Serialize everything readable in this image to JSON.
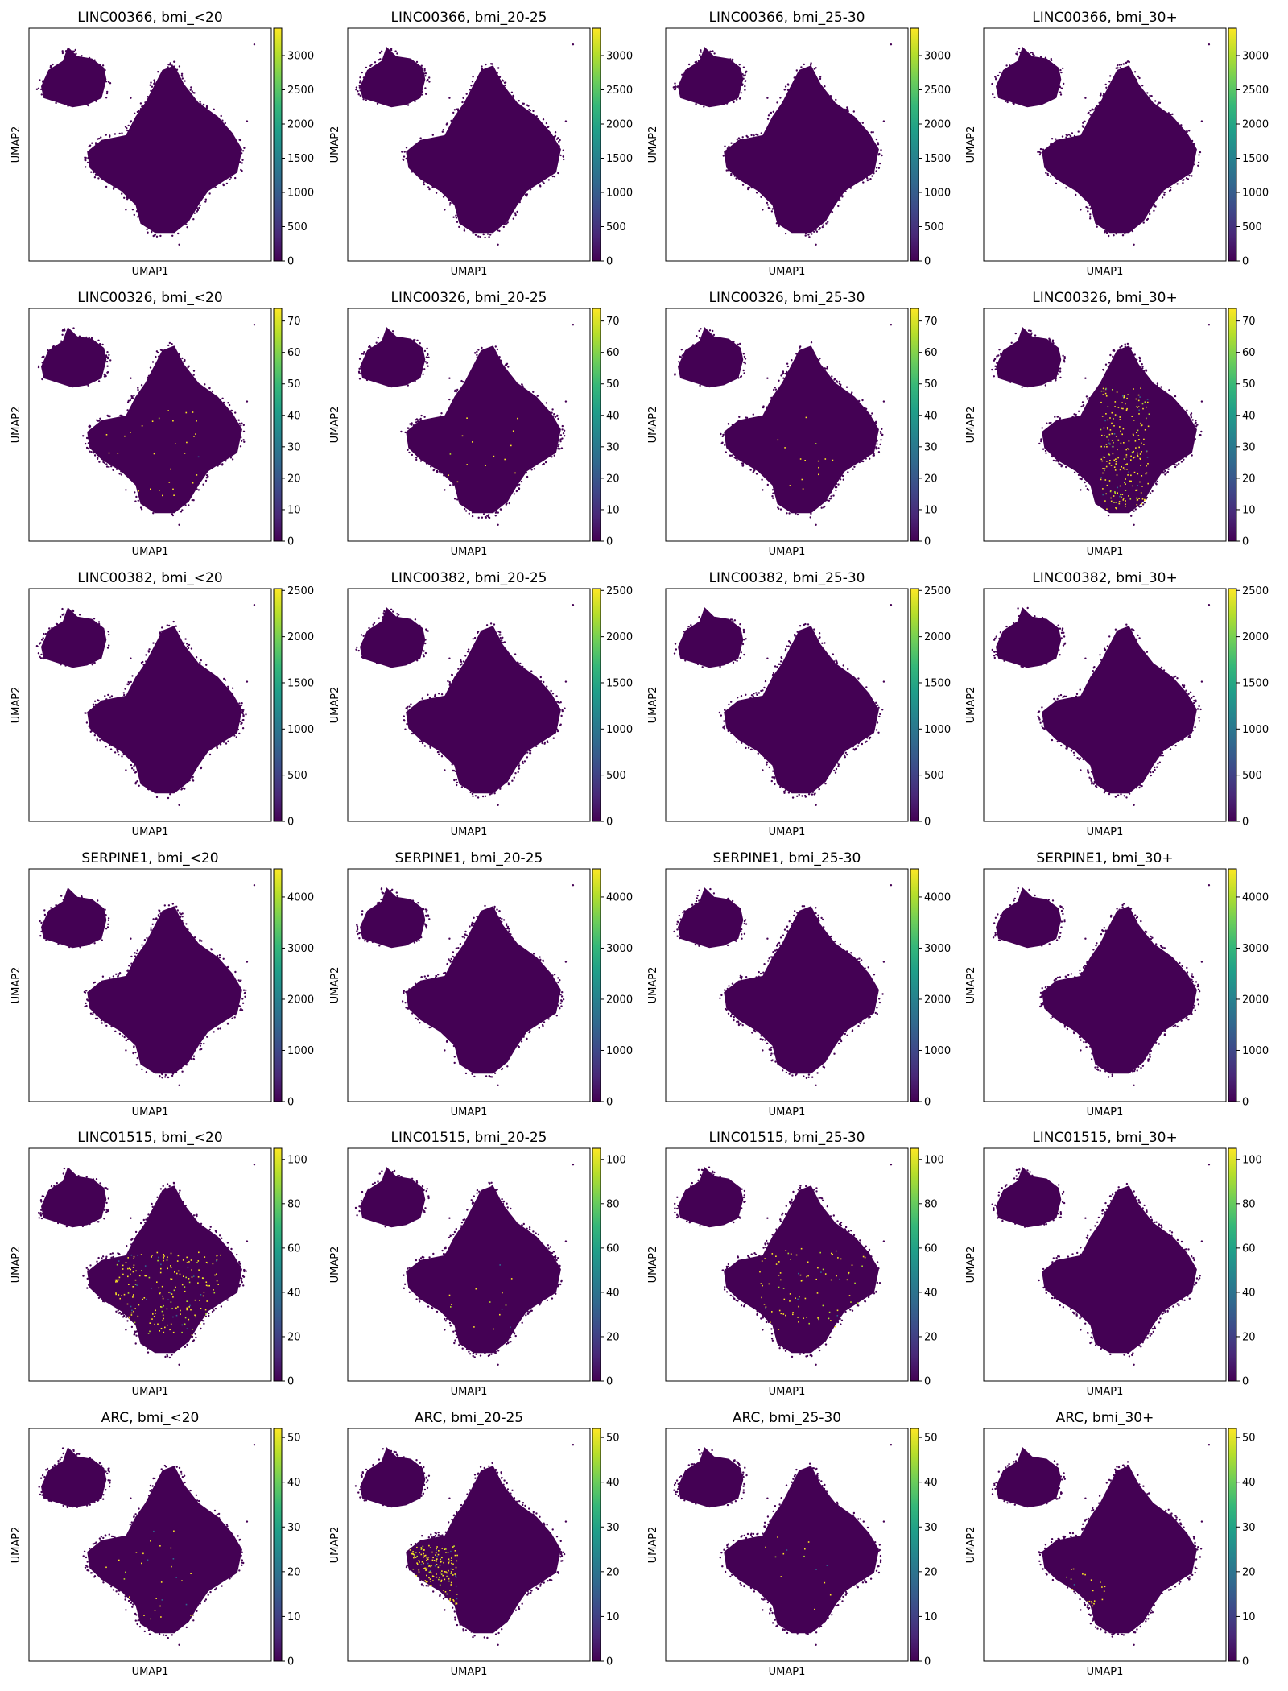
{
  "figure": {
    "xlabel": "UMAP1",
    "ylabel": "UMAP2",
    "colormap": "viridis",
    "colormap_stops": [
      "#440154",
      "#482878",
      "#3e4989",
      "#31688e",
      "#26828e",
      "#1f9e89",
      "#35b779",
      "#6ece58",
      "#b5de2b",
      "#fde725"
    ],
    "background_point_color": "#440154"
  },
  "chart_data": [
    {
      "type": "scatter",
      "title": "LINC00366, bmi_<20",
      "gene": "LINC00366",
      "group": "bmi_<20",
      "colorbar_ticks": [
        0,
        500,
        1000,
        1500,
        2000,
        2500,
        3000
      ],
      "colorbar_max": 3400,
      "highlight": "none",
      "xlabel": "UMAP1",
      "ylabel": "UMAP2"
    },
    {
      "type": "scatter",
      "title": "LINC00366, bmi_20-25",
      "gene": "LINC00366",
      "group": "bmi_20-25",
      "colorbar_ticks": [
        0,
        500,
        1000,
        1500,
        2000,
        2500,
        3000
      ],
      "colorbar_max": 3400,
      "highlight": "none",
      "xlabel": "UMAP1",
      "ylabel": "UMAP2"
    },
    {
      "type": "scatter",
      "title": "LINC00366, bmi_25-30",
      "gene": "LINC00366",
      "group": "bmi_25-30",
      "colorbar_ticks": [
        0,
        500,
        1000,
        1500,
        2000,
        2500,
        3000
      ],
      "colorbar_max": 3400,
      "highlight": "none",
      "xlabel": "UMAP1",
      "ylabel": "UMAP2"
    },
    {
      "type": "scatter",
      "title": "LINC00366, bmi_30+",
      "gene": "LINC00366",
      "group": "bmi_30+",
      "colorbar_ticks": [
        0,
        500,
        1000,
        1500,
        2000,
        2500,
        3000
      ],
      "colorbar_max": 3400,
      "highlight": "none",
      "xlabel": "UMAP1",
      "ylabel": "UMAP2"
    },
    {
      "type": "scatter",
      "title": "LINC00326, bmi_<20",
      "gene": "LINC00326",
      "group": "bmi_<20",
      "colorbar_ticks": [
        0,
        10,
        20,
        30,
        40,
        50,
        60,
        70
      ],
      "colorbar_max": 74,
      "highlight": "sparse",
      "xlabel": "UMAP1",
      "ylabel": "UMAP2"
    },
    {
      "type": "scatter",
      "title": "LINC00326, bmi_20-25",
      "gene": "LINC00326",
      "group": "bmi_20-25",
      "colorbar_ticks": [
        0,
        10,
        20,
        30,
        40,
        50,
        60,
        70
      ],
      "colorbar_max": 74,
      "highlight": "faint",
      "xlabel": "UMAP1",
      "ylabel": "UMAP2"
    },
    {
      "type": "scatter",
      "title": "LINC00326, bmi_25-30",
      "gene": "LINC00326",
      "group": "bmi_25-30",
      "colorbar_ticks": [
        0,
        10,
        20,
        30,
        40,
        50,
        60,
        70
      ],
      "colorbar_max": 74,
      "highlight": "faint",
      "xlabel": "UMAP1",
      "ylabel": "UMAP2"
    },
    {
      "type": "scatter",
      "title": "LINC00326, bmi_30+",
      "gene": "LINC00326",
      "group": "bmi_30+",
      "colorbar_ticks": [
        0,
        10,
        20,
        30,
        40,
        50,
        60,
        70
      ],
      "colorbar_max": 74,
      "highlight": "dense-center",
      "xlabel": "UMAP1",
      "ylabel": "UMAP2"
    },
    {
      "type": "scatter",
      "title": "LINC00382, bmi_<20",
      "gene": "LINC00382",
      "group": "bmi_<20",
      "colorbar_ticks": [
        0,
        500,
        1000,
        1500,
        2000,
        2500
      ],
      "colorbar_max": 2520,
      "highlight": "none",
      "xlabel": "UMAP1",
      "ylabel": "UMAP2"
    },
    {
      "type": "scatter",
      "title": "LINC00382, bmi_20-25",
      "gene": "LINC00382",
      "group": "bmi_20-25",
      "colorbar_ticks": [
        0,
        500,
        1000,
        1500,
        2000,
        2500
      ],
      "colorbar_max": 2520,
      "highlight": "none",
      "xlabel": "UMAP1",
      "ylabel": "UMAP2"
    },
    {
      "type": "scatter",
      "title": "LINC00382, bmi_25-30",
      "gene": "LINC00382",
      "group": "bmi_25-30",
      "colorbar_ticks": [
        0,
        500,
        1000,
        1500,
        2000,
        2500
      ],
      "colorbar_max": 2520,
      "highlight": "none",
      "xlabel": "UMAP1",
      "ylabel": "UMAP2"
    },
    {
      "type": "scatter",
      "title": "LINC00382, bmi_30+",
      "gene": "LINC00382",
      "group": "bmi_30+",
      "colorbar_ticks": [
        0,
        500,
        1000,
        1500,
        2000,
        2500
      ],
      "colorbar_max": 2520,
      "highlight": "none",
      "xlabel": "UMAP1",
      "ylabel": "UMAP2"
    },
    {
      "type": "scatter",
      "title": "SERPINE1, bmi_<20",
      "gene": "SERPINE1",
      "group": "bmi_<20",
      "colorbar_ticks": [
        0,
        1000,
        2000,
        3000,
        4000
      ],
      "colorbar_max": 4550,
      "highlight": "none",
      "xlabel": "UMAP1",
      "ylabel": "UMAP2"
    },
    {
      "type": "scatter",
      "title": "SERPINE1, bmi_20-25",
      "gene": "SERPINE1",
      "group": "bmi_20-25",
      "colorbar_ticks": [
        0,
        1000,
        2000,
        3000,
        4000
      ],
      "colorbar_max": 4550,
      "highlight": "none",
      "xlabel": "UMAP1",
      "ylabel": "UMAP2"
    },
    {
      "type": "scatter",
      "title": "SERPINE1, bmi_25-30",
      "gene": "SERPINE1",
      "group": "bmi_25-30",
      "colorbar_ticks": [
        0,
        1000,
        2000,
        3000,
        4000
      ],
      "colorbar_max": 4550,
      "highlight": "none",
      "xlabel": "UMAP1",
      "ylabel": "UMAP2"
    },
    {
      "type": "scatter",
      "title": "SERPINE1, bmi_30+",
      "gene": "SERPINE1",
      "group": "bmi_30+",
      "colorbar_ticks": [
        0,
        1000,
        2000,
        3000,
        4000
      ],
      "colorbar_max": 4550,
      "highlight": "none",
      "xlabel": "UMAP1",
      "ylabel": "UMAP2"
    },
    {
      "type": "scatter",
      "title": "LINC01515, bmi_<20",
      "gene": "LINC01515",
      "group": "bmi_<20",
      "colorbar_ticks": [
        0,
        20,
        40,
        60,
        80,
        100
      ],
      "colorbar_max": 105,
      "highlight": "dense-right",
      "xlabel": "UMAP1",
      "ylabel": "UMAP2"
    },
    {
      "type": "scatter",
      "title": "LINC01515, bmi_20-25",
      "gene": "LINC01515",
      "group": "bmi_20-25",
      "colorbar_ticks": [
        0,
        20,
        40,
        60,
        80,
        100
      ],
      "colorbar_max": 105,
      "highlight": "faint",
      "xlabel": "UMAP1",
      "ylabel": "UMAP2"
    },
    {
      "type": "scatter",
      "title": "LINC01515, bmi_25-30",
      "gene": "LINC01515",
      "group": "bmi_25-30",
      "colorbar_ticks": [
        0,
        20,
        40,
        60,
        80,
        100
      ],
      "colorbar_max": 105,
      "highlight": "moderate-right",
      "xlabel": "UMAP1",
      "ylabel": "UMAP2"
    },
    {
      "type": "scatter",
      "title": "LINC01515, bmi_30+",
      "gene": "LINC01515",
      "group": "bmi_30+",
      "colorbar_ticks": [
        0,
        20,
        40,
        60,
        80,
        100
      ],
      "colorbar_max": 105,
      "highlight": "none",
      "xlabel": "UMAP1",
      "ylabel": "UMAP2"
    },
    {
      "type": "scatter",
      "title": "ARC, bmi_<20",
      "gene": "ARC",
      "group": "bmi_<20",
      "colorbar_ticks": [
        0,
        10,
        20,
        30,
        40,
        50
      ],
      "colorbar_max": 52,
      "highlight": "sparse",
      "xlabel": "UMAP1",
      "ylabel": "UMAP2"
    },
    {
      "type": "scatter",
      "title": "ARC, bmi_20-25",
      "gene": "ARC",
      "group": "bmi_20-25",
      "colorbar_ticks": [
        0,
        10,
        20,
        30,
        40,
        50
      ],
      "colorbar_max": 52,
      "highlight": "dense-left",
      "xlabel": "UMAP1",
      "ylabel": "UMAP2"
    },
    {
      "type": "scatter",
      "title": "ARC, bmi_25-30",
      "gene": "ARC",
      "group": "bmi_25-30",
      "colorbar_ticks": [
        0,
        10,
        20,
        30,
        40,
        50
      ],
      "colorbar_max": 52,
      "highlight": "faint",
      "xlabel": "UMAP1",
      "ylabel": "UMAP2"
    },
    {
      "type": "scatter",
      "title": "ARC, bmi_30+",
      "gene": "ARC",
      "group": "bmi_30+",
      "colorbar_ticks": [
        0,
        10,
        20,
        30,
        40,
        50
      ],
      "colorbar_max": 52,
      "highlight": "faint-left",
      "xlabel": "UMAP1",
      "ylabel": "UMAP2"
    }
  ]
}
